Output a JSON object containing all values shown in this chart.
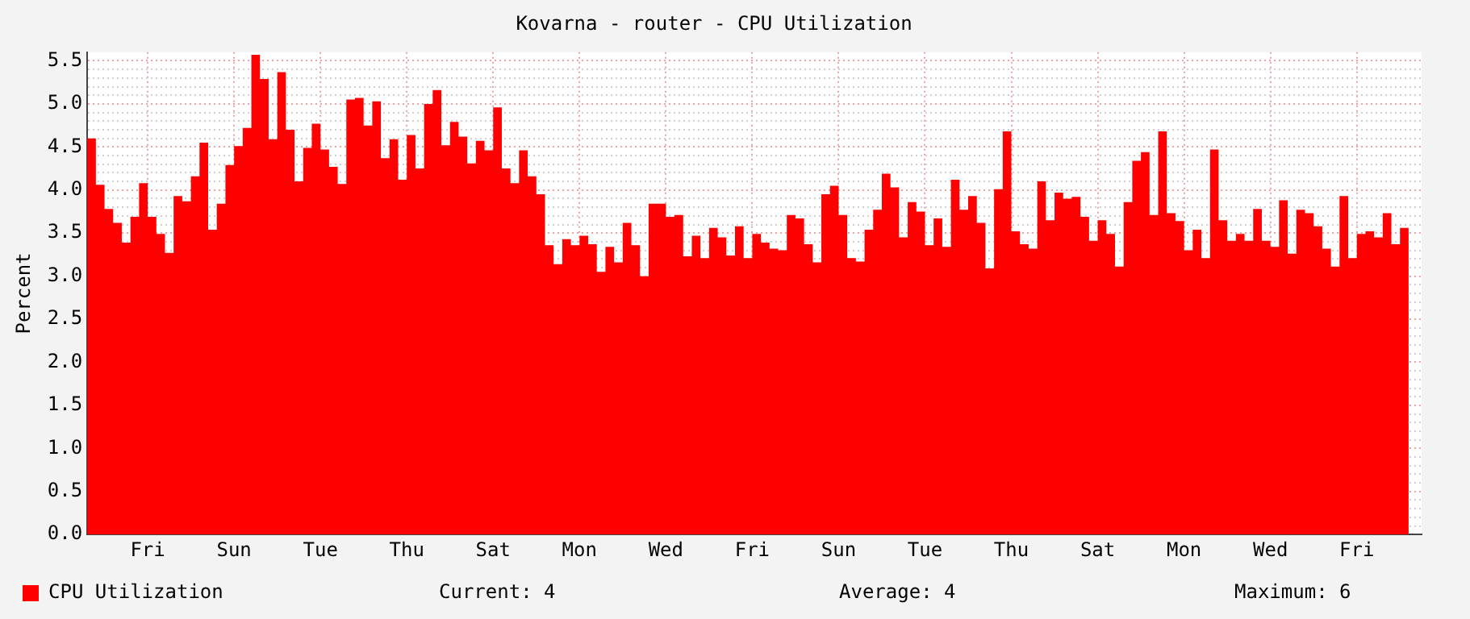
{
  "chart_data": {
    "type": "area",
    "title": "Kovarna - router - CPU Utilization",
    "ylabel": "Percent",
    "categories": [
      null,
      null,
      null,
      null,
      null,
      null,
      null,
      "Fri",
      null,
      null,
      null,
      null,
      null,
      null,
      null,
      null,
      null,
      "Sun",
      null,
      null,
      null,
      null,
      null,
      null,
      null,
      null,
      null,
      "Tue",
      null,
      null,
      null,
      null,
      null,
      null,
      null,
      null,
      null,
      "Thu",
      null,
      null,
      null,
      null,
      null,
      null,
      null,
      null,
      null,
      "Sat",
      null,
      null,
      null,
      null,
      null,
      null,
      null,
      null,
      null,
      "Mon",
      null,
      null,
      null,
      null,
      null,
      null,
      null,
      null,
      null,
      "Wed",
      null,
      null,
      null,
      null,
      null,
      null,
      null,
      null,
      null,
      "Fri",
      null,
      null,
      null,
      null,
      null,
      null,
      null,
      null,
      null,
      "Sun",
      null,
      null,
      null,
      null,
      null,
      null,
      null,
      null,
      null,
      "Tue",
      null,
      null,
      null,
      null,
      null,
      null,
      null,
      null,
      null,
      "Thu",
      null,
      null,
      null,
      null,
      null,
      null,
      null,
      null,
      null,
      "Sat",
      null,
      null,
      null,
      null,
      null,
      null,
      null,
      null,
      null,
      "Mon",
      null,
      null,
      null,
      null,
      null,
      null,
      null,
      null,
      null,
      "Wed",
      null,
      null,
      null,
      null,
      null,
      null,
      null,
      null,
      null,
      "Fri",
      null,
      null,
      null,
      null,
      null,
      null
    ],
    "ylim": [
      0,
      5.6
    ],
    "yticks": [
      {
        "value": 0,
        "label": "0.0"
      },
      {
        "value": 0.1,
        "label": null
      },
      {
        "value": 0.2,
        "label": null
      },
      {
        "value": 0.3,
        "label": null
      },
      {
        "value": 0.4,
        "label": null
      },
      {
        "value": 0.5,
        "label": "0.5"
      },
      {
        "value": 0.6,
        "label": null
      },
      {
        "value": 0.7,
        "label": null
      },
      {
        "value": 0.8,
        "label": null
      },
      {
        "value": 0.9,
        "label": null
      },
      {
        "value": 1,
        "label": "1.0"
      },
      {
        "value": 1.1,
        "label": null
      },
      {
        "value": 1.2,
        "label": null
      },
      {
        "value": 1.3,
        "label": null
      },
      {
        "value": 1.4,
        "label": null
      },
      {
        "value": 1.5,
        "label": "1.5"
      },
      {
        "value": 1.6,
        "label": null
      },
      {
        "value": 1.7,
        "label": null
      },
      {
        "value": 1.8,
        "label": null
      },
      {
        "value": 1.9,
        "label": null
      },
      {
        "value": 2,
        "label": "2.0"
      },
      {
        "value": 2.1,
        "label": null
      },
      {
        "value": 2.2,
        "label": null
      },
      {
        "value": 2.3,
        "label": null
      },
      {
        "value": 2.4,
        "label": null
      },
      {
        "value": 2.5,
        "label": "2.5"
      },
      {
        "value": 2.6,
        "label": null
      },
      {
        "value": 2.7,
        "label": null
      },
      {
        "value": 2.8,
        "label": null
      },
      {
        "value": 2.9,
        "label": null
      },
      {
        "value": 3,
        "label": "3.0"
      },
      {
        "value": 3.1,
        "label": null
      },
      {
        "value": 3.2,
        "label": null
      },
      {
        "value": 3.3,
        "label": null
      },
      {
        "value": 3.4,
        "label": null
      },
      {
        "value": 3.5,
        "label": "3.5"
      },
      {
        "value": 3.6,
        "label": null
      },
      {
        "value": 3.7,
        "label": null
      },
      {
        "value": 3.8,
        "label": null
      },
      {
        "value": 3.9,
        "label": null
      },
      {
        "value": 4,
        "label": "4.0"
      },
      {
        "value": 4.1,
        "label": null
      },
      {
        "value": 4.2,
        "label": null
      },
      {
        "value": 4.3,
        "label": null
      },
      {
        "value": 4.4,
        "label": null
      },
      {
        "value": 4.5,
        "label": "4.5"
      },
      {
        "value": 4.6,
        "label": null
      },
      {
        "value": 4.7,
        "label": null
      },
      {
        "value": 4.8,
        "label": null
      },
      {
        "value": 4.9,
        "label": null
      },
      {
        "value": 5,
        "label": "5.0"
      },
      {
        "value": 5.1,
        "label": null
      },
      {
        "value": 5.2,
        "label": null
      },
      {
        "value": 5.3,
        "label": null
      },
      {
        "value": 5.4,
        "label": null
      },
      {
        "value": 5.5,
        "label": "5.5"
      }
    ],
    "grid": true,
    "legend": "bottom left",
    "annotations": [
      "Current: 4",
      "Average: 4",
      "Maximum: 6"
    ],
    "series": [
      {
        "name": "CPU Utilization",
        "color": "#ff0000",
        "values": [
          4.01,
          4.6,
          4.06,
          3.78,
          3.62,
          3.39,
          3.69,
          4.08,
          3.69,
          3.49,
          3.27,
          3.93,
          3.87,
          4.16,
          4.55,
          3.54,
          3.84,
          4.29,
          4.51,
          4.72,
          5.57,
          5.29,
          4.59,
          5.37,
          4.7,
          4.1,
          4.49,
          4.77,
          4.47,
          4.27,
          4.07,
          5.05,
          5.07,
          4.75,
          5.03,
          4.37,
          4.59,
          4.12,
          4.64,
          4.25,
          5.0,
          5.16,
          4.52,
          4.79,
          4.62,
          4.31,
          4.57,
          4.46,
          4.96,
          4.25,
          4.08,
          4.46,
          4.16,
          3.95,
          3.36,
          3.14,
          3.43,
          3.36,
          3.47,
          3.37,
          3.05,
          3.34,
          3.16,
          3.62,
          3.36,
          3.0,
          3.84,
          3.84,
          3.69,
          3.71,
          3.23,
          3.47,
          3.21,
          3.56,
          3.45,
          3.24,
          3.58,
          3.21,
          3.49,
          3.39,
          3.32,
          3.3,
          3.71,
          3.67,
          3.37,
          3.16,
          3.95,
          4.05,
          3.71,
          3.21,
          3.17,
          3.54,
          3.77,
          4.19,
          4.03,
          3.45,
          3.86,
          3.75,
          3.36,
          3.67,
          3.34,
          4.12,
          3.77,
          3.93,
          3.62,
          3.09,
          4.01,
          4.68,
          3.52,
          3.37,
          3.32,
          4.1,
          3.65,
          3.97,
          3.9,
          3.92,
          3.69,
          3.41,
          3.65,
          3.49,
          3.11,
          3.86,
          4.34,
          4.44,
          3.71,
          4.68,
          3.73,
          3.64,
          3.3,
          3.54,
          3.21,
          4.47,
          3.65,
          3.41,
          3.49,
          3.41,
          3.78,
          3.41,
          3.34,
          3.88,
          3.26,
          3.77,
          3.73,
          3.58,
          3.32,
          3.11,
          3.93,
          3.21,
          3.49,
          3.52,
          3.45,
          3.73,
          3.37,
          3.56
        ]
      }
    ]
  }
}
